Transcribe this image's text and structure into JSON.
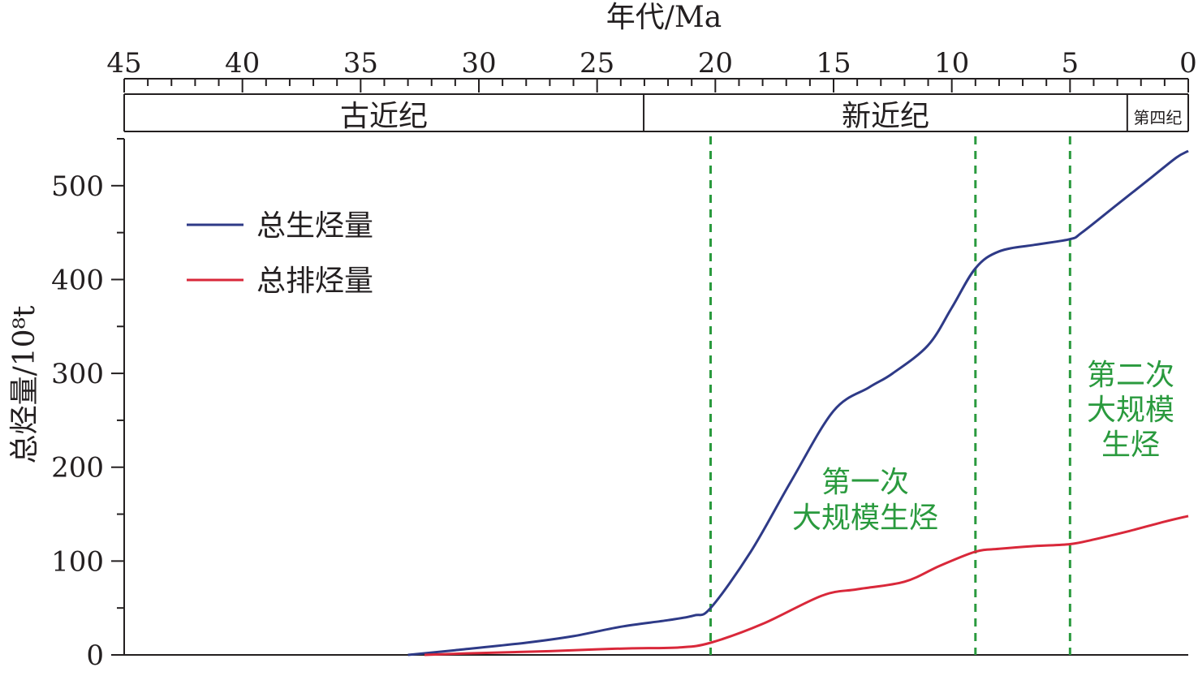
{
  "chart_data": {
    "type": "line",
    "title": "",
    "top_axis": {
      "label": "年代/Ma",
      "range": [
        45,
        0
      ],
      "major_ticks": [
        45,
        40,
        35,
        30,
        25,
        20,
        15,
        10,
        5,
        0
      ]
    },
    "periods": [
      {
        "name": "古近纪",
        "start": 45,
        "end": 23.03
      },
      {
        "name": "新近纪",
        "start": 23.03,
        "end": 2.58
      },
      {
        "name": "第四纪",
        "start": 2.58,
        "end": 0
      }
    ],
    "y_axis": {
      "label": "总烃量/10⁸t",
      "range": [
        0,
        550
      ],
      "ticks": [
        0,
        100,
        200,
        300,
        400,
        500
      ]
    },
    "legend": {
      "placement": "top-left",
      "items": [
        {
          "label": "总生烃量",
          "color": "#2e3a87"
        },
        {
          "label": "总排烃量",
          "color": "#d9283a"
        }
      ]
    },
    "series": [
      {
        "name": "总生烃量",
        "color": "#2e3a87",
        "points": [
          [
            33,
            0
          ],
          [
            31,
            5
          ],
          [
            28,
            13
          ],
          [
            26,
            20
          ],
          [
            24,
            30
          ],
          [
            22,
            37
          ],
          [
            20.9,
            42
          ],
          [
            20.2,
            50
          ],
          [
            18.5,
            110
          ],
          [
            16.8,
            185
          ],
          [
            15,
            260
          ],
          [
            13.5,
            285
          ],
          [
            12.5,
            300
          ],
          [
            11,
            330
          ],
          [
            10,
            370
          ],
          [
            9,
            412
          ],
          [
            8,
            430
          ],
          [
            6.5,
            437
          ],
          [
            5,
            443
          ],
          [
            4.5,
            450
          ],
          [
            3,
            480
          ],
          [
            1.5,
            510
          ],
          [
            0.5,
            530
          ],
          [
            0,
            537
          ]
        ]
      },
      {
        "name": "总排烃量",
        "color": "#d9283a",
        "points": [
          [
            32.3,
            0
          ],
          [
            30,
            2
          ],
          [
            27,
            4
          ],
          [
            25,
            6
          ],
          [
            23.5,
            7
          ],
          [
            21.5,
            8
          ],
          [
            20.2,
            13
          ],
          [
            18,
            33
          ],
          [
            15.5,
            63
          ],
          [
            14,
            70
          ],
          [
            12,
            78
          ],
          [
            10.5,
            95
          ],
          [
            9,
            110
          ],
          [
            8,
            113
          ],
          [
            6.5,
            116
          ],
          [
            5,
            118
          ],
          [
            4,
            123
          ],
          [
            2.5,
            132
          ],
          [
            1,
            142
          ],
          [
            0,
            148
          ]
        ]
      }
    ],
    "reference_lines": [
      {
        "x": 20.2,
        "color": "#2a9a3e",
        "style": "dashed"
      },
      {
        "x": 9,
        "color": "#2a9a3e",
        "style": "dashed"
      },
      {
        "x": 5,
        "color": "#2a9a3e",
        "style": "dashed"
      }
    ],
    "annotations": [
      {
        "id": "first",
        "lines": [
          "第一次",
          "大规模生烃"
        ],
        "color": "#2a9a3e"
      },
      {
        "id": "second",
        "lines": [
          "第二次",
          "大规模",
          "生烃"
        ],
        "color": "#2a9a3e"
      }
    ],
    "grid": false
  }
}
